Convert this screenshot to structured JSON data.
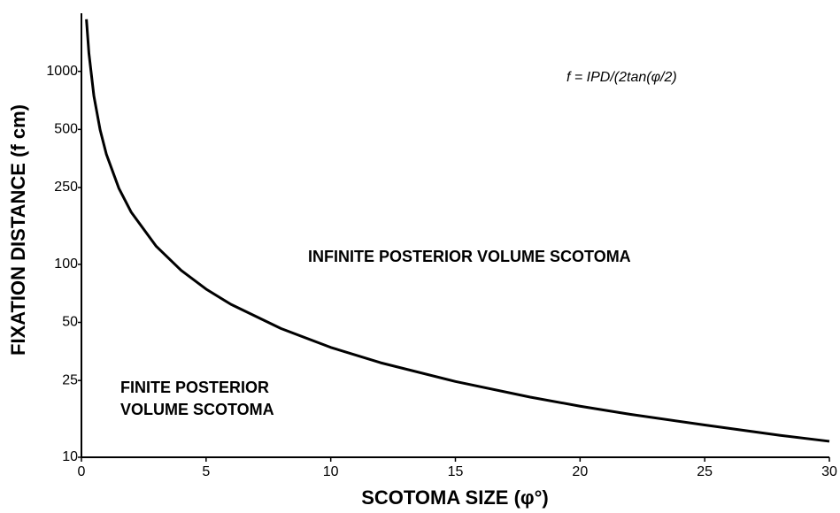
{
  "chart_data": {
    "type": "line",
    "xlabel": "SCOTOMA SIZE (φ°)",
    "ylabel": "FIXATION DISTANCE (f cm)",
    "annotations": [
      "f = IPD/(2tan(φ/2)",
      "INFINITE POSTERIOR VOLUME SCOTOMA",
      "FINITE POSTERIOR",
      "VOLUME SCOTOMA"
    ],
    "x": [
      0.2,
      0.3,
      0.5,
      0.75,
      1,
      1.5,
      2,
      3,
      4,
      5,
      6,
      8,
      10,
      12,
      15,
      18,
      20,
      22,
      25,
      28,
      30
    ],
    "series": [
      {
        "color": "#000000",
        "values": [
          1862,
          1241,
          745,
          497,
          372,
          248,
          186,
          124,
          93,
          74.4,
          62,
          46.5,
          37.1,
          30.9,
          24.7,
          20.5,
          18.4,
          16.7,
          14.7,
          13.0,
          12.1
        ]
      }
    ],
    "xlim": [
      0,
      30
    ],
    "xticks": [
      0,
      5,
      10,
      15,
      20,
      25,
      30
    ],
    "ylim": [
      10,
      2000
    ],
    "yticks": [
      10,
      25,
      50,
      100,
      250,
      500,
      1000
    ],
    "log_y": true,
    "grid": false
  }
}
